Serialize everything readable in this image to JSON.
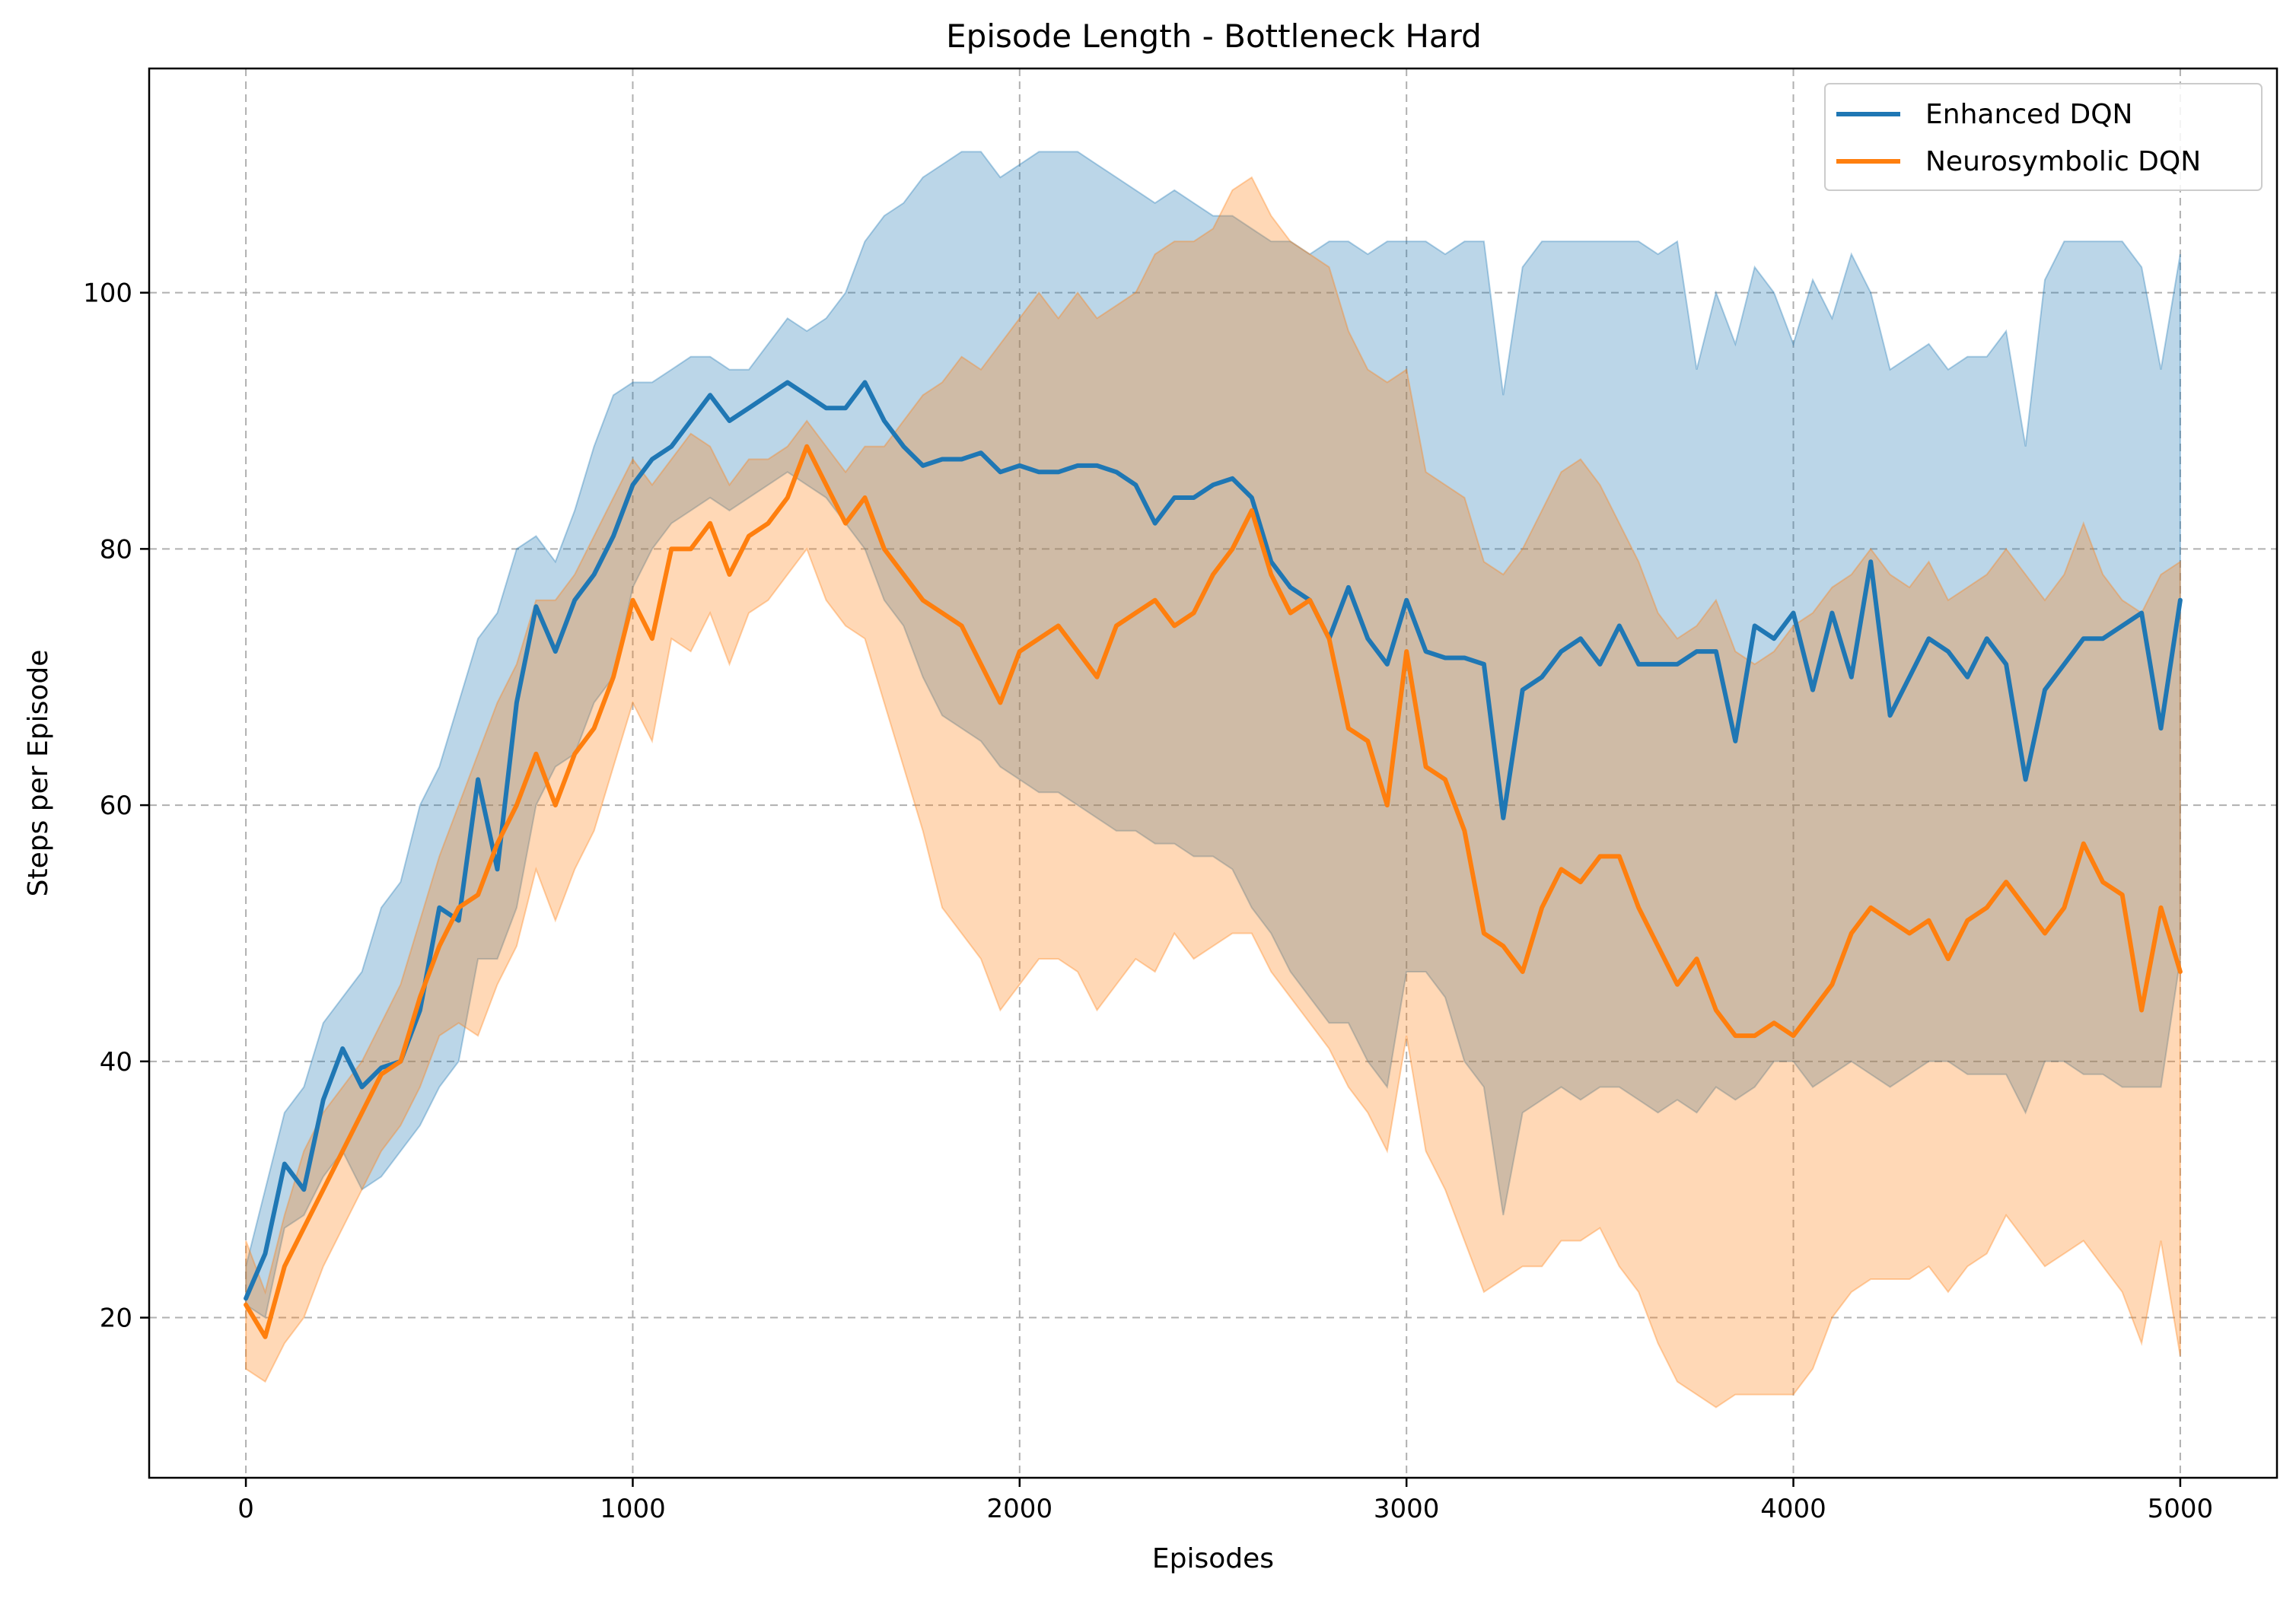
{
  "chart_data": {
    "type": "line",
    "title": "Episode Length - Bottleneck Hard",
    "xlabel": "Episodes",
    "ylabel": "Steps per Episode",
    "xlim": [
      -250,
      5250
    ],
    "ylim": [
      7.5,
      117.5
    ],
    "xticks": [
      0,
      1000,
      2000,
      3000,
      4000,
      5000
    ],
    "yticks": [
      20,
      40,
      60,
      80,
      100
    ],
    "grid": true,
    "legend_position": "top-right",
    "series": [
      {
        "name": "Enhanced DQN",
        "color": "#1f77b4",
        "band_color": "#1f77b4",
        "x": [
          0,
          50,
          100,
          150,
          200,
          250,
          300,
          350,
          400,
          450,
          500,
          550,
          600,
          650,
          700,
          750,
          800,
          850,
          900,
          950,
          1000,
          1050,
          1100,
          1150,
          1200,
          1250,
          1300,
          1350,
          1400,
          1450,
          1500,
          1550,
          1600,
          1650,
          1700,
          1750,
          1800,
          1850,
          1900,
          1950,
          2000,
          2050,
          2100,
          2150,
          2200,
          2250,
          2300,
          2350,
          2400,
          2450,
          2500,
          2550,
          2600,
          2650,
          2700,
          2750,
          2800,
          2850,
          2900,
          2950,
          3000,
          3050,
          3100,
          3150,
          3200,
          3250,
          3300,
          3350,
          3400,
          3450,
          3500,
          3550,
          3600,
          3650,
          3700,
          3750,
          3800,
          3850,
          3900,
          3950,
          4000,
          4050,
          4100,
          4150,
          4200,
          4250,
          4300,
          4350,
          4400,
          4450,
          4500,
          4550,
          4600,
          4650,
          4700,
          4750,
          4800,
          4850,
          4900,
          4950,
          5000
        ],
        "mean": [
          21.5,
          25,
          32,
          30,
          37,
          41,
          38,
          39.5,
          40,
          44,
          52,
          51,
          62,
          55,
          68,
          75.5,
          72,
          76,
          78,
          81,
          85,
          87,
          88,
          90,
          92,
          90,
          91,
          92,
          93,
          92,
          91,
          91,
          93,
          90,
          88,
          86.5,
          87,
          87,
          87.5,
          86,
          86.5,
          86,
          86,
          86.5,
          86.5,
          86,
          85,
          82,
          84,
          84,
          85,
          85.5,
          84,
          79,
          77,
          76,
          73,
          77,
          73,
          71,
          76,
          72,
          71.5,
          71.5,
          71,
          59,
          69,
          70,
          72,
          73,
          71,
          74,
          71,
          71,
          71,
          72,
          72,
          65,
          74,
          73,
          75,
          69,
          75,
          70,
          79,
          67,
          70,
          73,
          72,
          70,
          73,
          71,
          62,
          69,
          71,
          73,
          73,
          74,
          75,
          66,
          76
        ],
        "upper": [
          24,
          30,
          36,
          38,
          43,
          45,
          47,
          52,
          54,
          60,
          63,
          68,
          73,
          75,
          80,
          81,
          79,
          83,
          88,
          92,
          93,
          93,
          94,
          95,
          95,
          94,
          94,
          96,
          98,
          97,
          98,
          100,
          104,
          106,
          107,
          109,
          110,
          111,
          111,
          109,
          110,
          111,
          111,
          111,
          110,
          109,
          108,
          107,
          108,
          107,
          106,
          106,
          105,
          104,
          104,
          103,
          104,
          104,
          103,
          104,
          104,
          104,
          103,
          104,
          104,
          92,
          102,
          104,
          104,
          104,
          104,
          104,
          104,
          103,
          104,
          94,
          100,
          96,
          102,
          100,
          96,
          101,
          98,
          103,
          100,
          94,
          95,
          96,
          94,
          95,
          95,
          97,
          88,
          101,
          104,
          104,
          104,
          104,
          102,
          94,
          103
        ],
        "lower": [
          21,
          20,
          27,
          28,
          31,
          33,
          30,
          31,
          33,
          35,
          38,
          40,
          48,
          48,
          52,
          60,
          63,
          64,
          68,
          70,
          77,
          80,
          82,
          83,
          84,
          83,
          84,
          85,
          86,
          85,
          84,
          82,
          80,
          76,
          74,
          70,
          67,
          66,
          65,
          63,
          62,
          61,
          61,
          60,
          59,
          58,
          58,
          57,
          57,
          56,
          56,
          55,
          52,
          50,
          47,
          45,
          43,
          43,
          40,
          38,
          47,
          47,
          45,
          40,
          38,
          28,
          36,
          37,
          38,
          37,
          38,
          38,
          37,
          36,
          37,
          36,
          38,
          37,
          38,
          40,
          40,
          38,
          39,
          40,
          39,
          38,
          39,
          40,
          40,
          39,
          39,
          39,
          36,
          40,
          40,
          39,
          39,
          38,
          38,
          38,
          48
        ]
      },
      {
        "name": "Neurosymbolic DQN",
        "color": "#ff7f0e",
        "band_color": "#ff7f0e",
        "x": [
          0,
          50,
          100,
          150,
          200,
          250,
          300,
          350,
          400,
          450,
          500,
          550,
          600,
          650,
          700,
          750,
          800,
          850,
          900,
          950,
          1000,
          1050,
          1100,
          1150,
          1200,
          1250,
          1300,
          1350,
          1400,
          1450,
          1500,
          1550,
          1600,
          1650,
          1700,
          1750,
          1800,
          1850,
          1900,
          1950,
          2000,
          2050,
          2100,
          2150,
          2200,
          2250,
          2300,
          2350,
          2400,
          2450,
          2500,
          2550,
          2600,
          2650,
          2700,
          2750,
          2800,
          2850,
          2900,
          2950,
          3000,
          3050,
          3100,
          3150,
          3200,
          3250,
          3300,
          3350,
          3400,
          3450,
          3500,
          3550,
          3600,
          3650,
          3700,
          3750,
          3800,
          3850,
          3900,
          3950,
          4000,
          4050,
          4100,
          4150,
          4200,
          4250,
          4300,
          4350,
          4400,
          4450,
          4500,
          4550,
          4600,
          4650,
          4700,
          4750,
          4800,
          4850,
          4900,
          4950,
          5000
        ],
        "mean": [
          21,
          18.5,
          24,
          27,
          30,
          33,
          36,
          39,
          40,
          45,
          49,
          52,
          53,
          57,
          60,
          64,
          60,
          64,
          66,
          70,
          76,
          73,
          80,
          80,
          82,
          78,
          81,
          82,
          84,
          88,
          85,
          82,
          84,
          80,
          78,
          76,
          75,
          74,
          71,
          68,
          72,
          73,
          74,
          72,
          70,
          74,
          75,
          76,
          74,
          75,
          78,
          80,
          83,
          78,
          75,
          76,
          73,
          66,
          65,
          60,
          72,
          63,
          62,
          58,
          50,
          49,
          47,
          52,
          55,
          54,
          56,
          56,
          52,
          49,
          46,
          48,
          44,
          42,
          42,
          43,
          42,
          44,
          46,
          50,
          52,
          51,
          50,
          51,
          48,
          51,
          52,
          54,
          52,
          50,
          52,
          57,
          54,
          53,
          44,
          52,
          47
        ],
        "upper": [
          26,
          22,
          28,
          33,
          36,
          38,
          40,
          43,
          46,
          51,
          56,
          60,
          64,
          68,
          71,
          76,
          76,
          78,
          81,
          84,
          87,
          85,
          87,
          89,
          88,
          85,
          87,
          87,
          88,
          90,
          88,
          86,
          88,
          88,
          90,
          92,
          93,
          95,
          94,
          96,
          98,
          100,
          98,
          100,
          98,
          99,
          100,
          103,
          104,
          104,
          105,
          108,
          109,
          106,
          104,
          103,
          102,
          97,
          94,
          93,
          94,
          86,
          85,
          84,
          79,
          78,
          80,
          83,
          86,
          87,
          85,
          82,
          79,
          75,
          73,
          74,
          76,
          72,
          71,
          72,
          74,
          75,
          77,
          78,
          80,
          78,
          77,
          79,
          76,
          77,
          78,
          80,
          78,
          76,
          78,
          82,
          78,
          76,
          75,
          78,
          79
        ],
        "lower": [
          16,
          15,
          18,
          20,
          24,
          27,
          30,
          33,
          35,
          38,
          42,
          43,
          42,
          46,
          49,
          55,
          51,
          55,
          58,
          63,
          68,
          65,
          73,
          72,
          75,
          71,
          75,
          76,
          78,
          80,
          76,
          74,
          73,
          68,
          63,
          58,
          52,
          50,
          48,
          44,
          46,
          48,
          48,
          47,
          44,
          46,
          48,
          47,
          50,
          48,
          49,
          50,
          50,
          47,
          45,
          43,
          41,
          38,
          36,
          33,
          42,
          33,
          30,
          26,
          22,
          23,
          24,
          24,
          26,
          26,
          27,
          24,
          22,
          18,
          15,
          14,
          13,
          14,
          14,
          14,
          14,
          16,
          20,
          22,
          23,
          23,
          23,
          24,
          22,
          24,
          25,
          28,
          26,
          24,
          25,
          26,
          24,
          22,
          18,
          26,
          17
        ]
      }
    ]
  }
}
